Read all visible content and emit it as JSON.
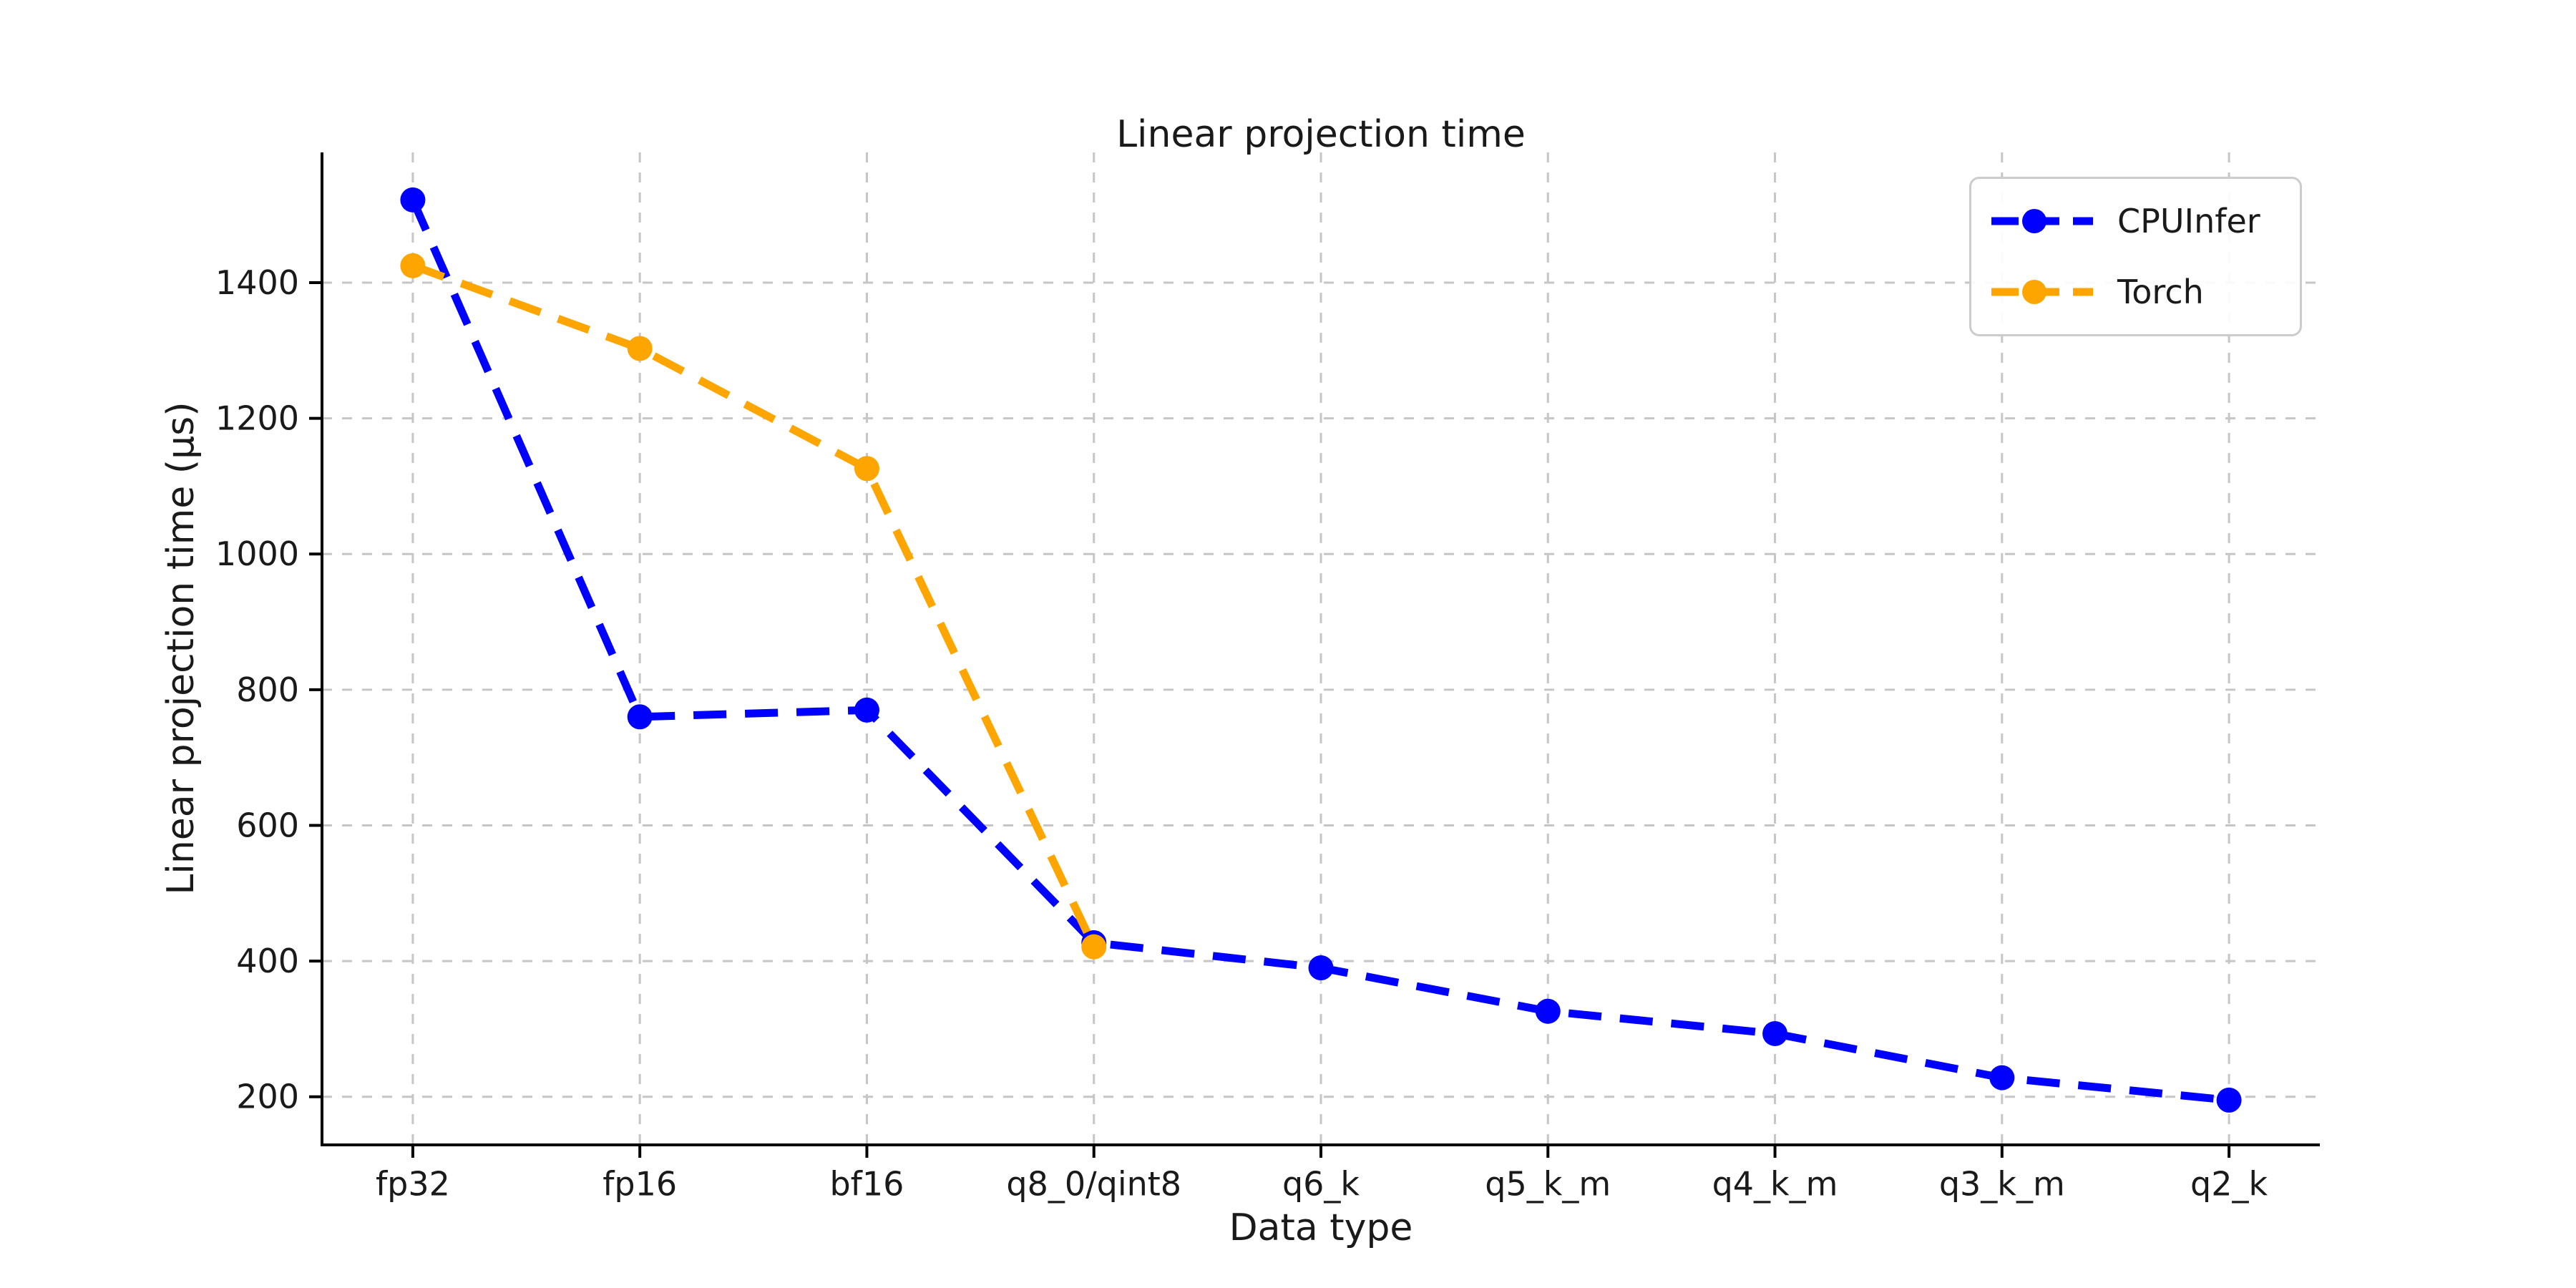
{
  "chart_data": {
    "type": "line",
    "title": "Linear projection time",
    "xlabel": "Data type",
    "ylabel": "Linear projection time (µs)",
    "categories": [
      "fp32",
      "fp16",
      "bf16",
      "q8_0/qint8",
      "q6_k",
      "q5_k_m",
      "q4_k_m",
      "q3_k_m",
      "q2_k"
    ],
    "series": [
      {
        "name": "CPUInfer",
        "color": "#0000ff",
        "values": [
          1522,
          760,
          770,
          427,
          390,
          326,
          293,
          228,
          195
        ]
      },
      {
        "name": "Torch",
        "color": "#ffa500",
        "values": [
          1425,
          1303,
          1126,
          421
        ]
      }
    ],
    "yticks": [
      200,
      400,
      600,
      800,
      1000,
      1200,
      1400
    ],
    "ylim": [
      129,
      1592
    ],
    "line_style": "dashed",
    "marker": "circle",
    "grid": true,
    "grid_color": "#c6c6c6",
    "spine_color": "#000000",
    "legend_position": "upper right"
  }
}
